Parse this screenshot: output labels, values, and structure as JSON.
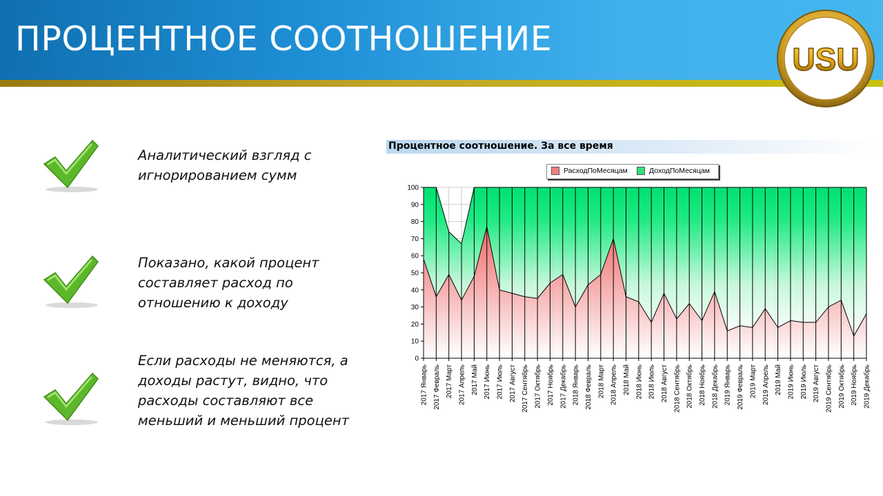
{
  "page": {
    "title": "ПРОЦЕНТНОЕ СООТНОШЕНИЕ",
    "logo_text": "USU"
  },
  "bullets": [
    {
      "text": "Аналитический взгляд с игнорированием сумм"
    },
    {
      "text": "Показано, какой процент составляет расход по отношению к доходу"
    },
    {
      "text": "Если расходы не меняются, а доходы растут, видно, что расходы составляют все меньший и меньший процент"
    }
  ],
  "colors": {
    "expense": "#f08080",
    "income": "#33e07a",
    "check": "#5cb82a"
  },
  "chart_data": {
    "type": "area",
    "title": "Процентное соотношение. За все время",
    "ylim": [
      0,
      100
    ],
    "yticks": [
      0,
      10,
      20,
      30,
      40,
      50,
      60,
      70,
      80,
      90,
      100
    ],
    "grid": true,
    "legend_position": "top-center",
    "categories": [
      "2017 Январь",
      "2017 Февраль",
      "2017 Март",
      "2017 Апрель",
      "2017 Май",
      "2017 Июнь",
      "2017 Июль",
      "2017 Август",
      "2017 Сентябрь",
      "2017 Октябрь",
      "2017 Ноябрь",
      "2017 Декабрь",
      "2018 Январь",
      "2018 Февраль",
      "2018 Март",
      "2018 Апрель",
      "2018 Май",
      "2018 Июнь",
      "2018 Июль",
      "2018 Август",
      "2018 Сентябрь",
      "2018 Октябрь",
      "2018 Ноябрь",
      "2018 Декабрь",
      "2019 Январь",
      "2019 Февраль",
      "2019 Март",
      "2019 Апрель",
      "2019 Май",
      "2019 Июнь",
      "2019 Июль",
      "2019 Август",
      "2019 Сентябрь",
      "2019 Октябрь",
      "2019 Ноябрь",
      "2019 Декабрь"
    ],
    "series": [
      {
        "name": "РасходПоМесяцам",
        "values": [
          58,
          36,
          49,
          34,
          48,
          77,
          40,
          38,
          36,
          35,
          44,
          49,
          30,
          43,
          49,
          70,
          36,
          33,
          21,
          38,
          23,
          32,
          22,
          39,
          16,
          19,
          18,
          29,
          18,
          22,
          21,
          21,
          30,
          34,
          13,
          26
        ]
      },
      {
        "name": "ДоходПоМесяцам",
        "values": [
          42,
          64,
          25,
          33,
          52,
          23,
          60,
          62,
          64,
          65,
          56,
          51,
          70,
          57,
          51,
          30,
          64,
          67,
          79,
          62,
          77,
          68,
          78,
          61,
          84,
          81,
          82,
          71,
          82,
          78,
          79,
          79,
          70,
          66,
          87,
          74
        ]
      }
    ]
  }
}
